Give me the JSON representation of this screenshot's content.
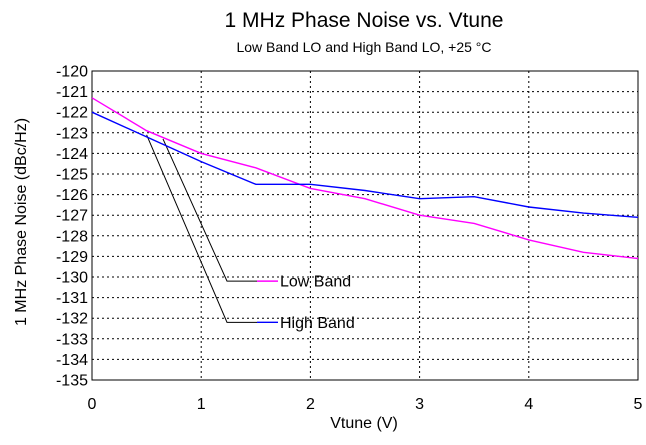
{
  "chart_data": {
    "type": "line",
    "title": "1 MHz Phase Noise vs. Vtune",
    "subtitle": "Low Band LO and High Band LO, +25 °C",
    "xlabel": "Vtune (V)",
    "ylabel": "1 MHz Phase Noise (dBc/Hz)",
    "xlim": [
      0,
      5
    ],
    "ylim": [
      -135,
      -120
    ],
    "x_ticks": [
      0,
      1,
      2,
      3,
      4,
      5
    ],
    "y_ticks": [
      -120,
      -121,
      -122,
      -123,
      -124,
      -125,
      -126,
      -127,
      -128,
      -129,
      -130,
      -131,
      -132,
      -133,
      -134,
      -135
    ],
    "grid": true,
    "legend": "inside-lower-left",
    "series": [
      {
        "name": "Low Band",
        "color": "#ff00ff",
        "x": [
          0,
          0.5,
          1,
          1.5,
          2,
          2.5,
          3,
          3.5,
          4,
          4.5,
          5
        ],
        "values": [
          -121.3,
          -122.9,
          -124.0,
          -124.7,
          -125.7,
          -126.2,
          -127.0,
          -127.4,
          -128.2,
          -128.8,
          -129.1
        ]
      },
      {
        "name": "High Band",
        "color": "#0000ff",
        "x": [
          0,
          0.5,
          1,
          1.5,
          2,
          2.5,
          3,
          3.5,
          4,
          4.5,
          5
        ],
        "values": [
          -122.0,
          -123.2,
          -124.4,
          -125.5,
          -125.5,
          -125.8,
          -126.2,
          -126.1,
          -126.6,
          -126.9,
          -127.1
        ]
      }
    ]
  }
}
